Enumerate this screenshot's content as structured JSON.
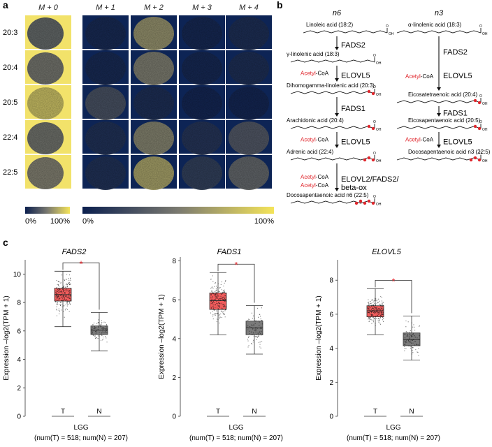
{
  "panel_labels": {
    "a": "a",
    "b": "b",
    "c": "c"
  },
  "panel_a": {
    "col_headers": [
      "M + 0",
      "M + 1",
      "M + 2",
      "M + 3",
      "M + 4"
    ],
    "row_labels": [
      "20:3",
      "20:4",
      "20:5",
      "22:4",
      "22:5"
    ],
    "intensity_pct": [
      [
        35,
        6,
        62,
        5,
        8
      ],
      [
        42,
        6,
        52,
        5,
        8
      ],
      [
        80,
        28,
        8,
        4,
        4
      ],
      [
        40,
        10,
        55,
        12,
        32
      ],
      [
        48,
        10,
        70,
        18,
        40
      ]
    ],
    "colorbar_small": {
      "min_label": "0%",
      "max_label": "100%"
    },
    "colorbar_large": {
      "min_label": "0%",
      "max_label": "100%"
    },
    "colors": {
      "low": "#0b1f4e",
      "mid": "#7b7a70",
      "high": "#f4e45a"
    }
  },
  "panel_b": {
    "n6_title": "n6",
    "n3_title": "n3",
    "n6": [
      {
        "name": "Linoleic acid (18:2)"
      },
      {
        "name": "γ-linolenic acid (18:3)",
        "enzyme": "FADS2"
      },
      {
        "name": "Dihomogamma-linolenic acid (20:3)",
        "enzyme": "ELOVL5",
        "acetyl": true
      },
      {
        "name": "Arachidonic acid (20:4)",
        "enzyme": "FADS1"
      },
      {
        "name": "Adrenic acid (22:4)",
        "enzyme": "ELOVL5",
        "acetyl": true
      },
      {
        "name": "Docosapentaenoic acid n6 (22:5)",
        "enzyme": "ELOVL2/FADS2/",
        "enzyme2": "beta-ox",
        "acetyl": true,
        "acetyl2": true
      }
    ],
    "n3": [
      {
        "name": "α-linolenic acid (18:3)"
      },
      {
        "name": "Eicosatetraenoic acid (20:4)",
        "enzyme": "FADS2",
        "enzyme2": "ELOVL5",
        "acetyl": true
      },
      {
        "name": "Eicosapentaenoic acid (20:5)",
        "enzyme": "FADS1"
      },
      {
        "name": "Docosapentaenoic acid n3 (22:5)",
        "enzyme": "ELOVL5",
        "acetyl": true
      }
    ],
    "acetyl_prefix": "Acetyl",
    "acetyl_suffix": "-CoA",
    "oh_label": "OH",
    "o_label": "O",
    "colors": {
      "acetyl": "#e0262c"
    }
  },
  "chart_data": [
    {
      "type": "box",
      "title": "FADS2",
      "ylabel": "Expression –log2(TPM + 1)",
      "xlabel": "LGG",
      "xlabel2": "(num(T) = 518; num(N) = 207)",
      "categories": [
        "T",
        "N"
      ],
      "ylim": [
        0,
        11
      ],
      "yticks": [
        0,
        2,
        4,
        6,
        8,
        10
      ],
      "series": [
        {
          "name": "T",
          "n": 518,
          "min": 6.3,
          "q1": 8.1,
          "median": 8.55,
          "q3": 9.0,
          "max": 10.2,
          "color": "#f25c5c"
        },
        {
          "name": "N",
          "n": 207,
          "min": 4.6,
          "q1": 5.75,
          "median": 6.05,
          "q3": 6.35,
          "max": 7.3,
          "color": "#7a7a7a"
        }
      ],
      "significance": "*"
    },
    {
      "type": "box",
      "title": "FADS1",
      "ylabel": "Expression –log2(TPM + 1)",
      "xlabel": "LGG",
      "xlabel2": "(num(T) = 518; num(N) = 207)",
      "categories": [
        "T",
        "N"
      ],
      "ylim": [
        0,
        8.2
      ],
      "yticks": [
        0,
        2,
        4,
        6,
        8
      ],
      "series": [
        {
          "name": "T",
          "n": 518,
          "min": 4.2,
          "q1": 5.5,
          "median": 5.95,
          "q3": 6.35,
          "max": 7.4,
          "color": "#f25c5c"
        },
        {
          "name": "N",
          "n": 207,
          "min": 3.2,
          "q1": 4.2,
          "median": 4.55,
          "q3": 4.9,
          "max": 5.7,
          "color": "#7a7a7a"
        }
      ],
      "significance": "*"
    },
    {
      "type": "box",
      "title": "ELOVL5",
      "ylabel": "Expression –log2(TPM + 1)",
      "xlabel": "LGG",
      "xlabel2": "(num(T) = 518; num(N) = 207)",
      "categories": [
        "T",
        "N"
      ],
      "ylim": [
        0,
        9.2
      ],
      "yticks": [
        0,
        2,
        4,
        6,
        8
      ],
      "series": [
        {
          "name": "T",
          "n": 518,
          "min": 4.8,
          "q1": 5.85,
          "median": 6.2,
          "q3": 6.5,
          "max": 7.5,
          "color": "#f25c5c"
        },
        {
          "name": "N",
          "n": 207,
          "min": 3.3,
          "q1": 4.15,
          "median": 4.5,
          "q3": 4.9,
          "max": 5.9,
          "color": "#7a7a7a"
        }
      ],
      "significance": "*"
    }
  ]
}
